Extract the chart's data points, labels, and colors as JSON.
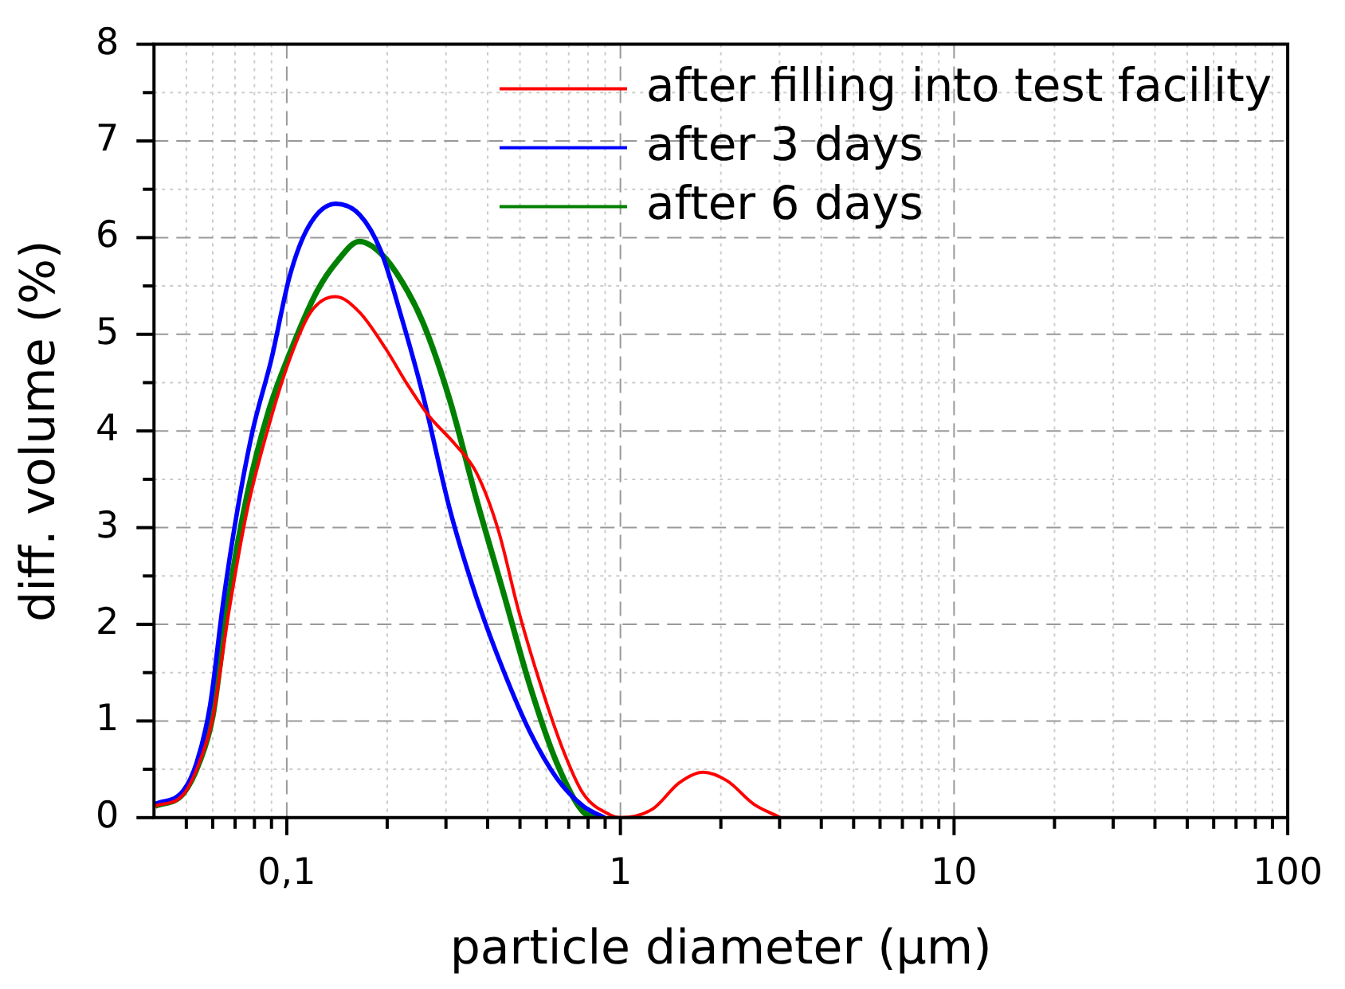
{
  "chart_data": {
    "type": "line",
    "xlabel": "particle diameter (µm)",
    "ylabel": "diff. volume (%)",
    "log": "x",
    "grid": true,
    "legend": "top right",
    "marker": "none",
    "line_style": "solid",
    "xlim": [
      0.04,
      100
    ],
    "ylim": [
      0,
      8
    ],
    "xticks": [
      {
        "value": 0.05,
        "label": null
      },
      {
        "value": 0.06,
        "label": null
      },
      {
        "value": 0.07,
        "label": null
      },
      {
        "value": 0.08,
        "label": null
      },
      {
        "value": 0.09,
        "label": null
      },
      {
        "value": 0.1,
        "label": "0,1"
      },
      {
        "value": 0.2,
        "label": null
      },
      {
        "value": 0.3,
        "label": null
      },
      {
        "value": 0.4,
        "label": null
      },
      {
        "value": 0.5,
        "label": null
      },
      {
        "value": 0.6,
        "label": null
      },
      {
        "value": 0.7,
        "label": null
      },
      {
        "value": 0.8,
        "label": null
      },
      {
        "value": 0.9,
        "label": null
      },
      1,
      {
        "value": 2,
        "label": null
      },
      {
        "value": 3,
        "label": null
      },
      {
        "value": 4,
        "label": null
      },
      {
        "value": 5,
        "label": null
      },
      {
        "value": 6,
        "label": null
      },
      {
        "value": 7,
        "label": null
      },
      {
        "value": 8,
        "label": null
      },
      {
        "value": 9,
        "label": null
      },
      10,
      {
        "value": 20,
        "label": null
      },
      {
        "value": 30,
        "label": null
      },
      {
        "value": 40,
        "label": null
      },
      {
        "value": 50,
        "label": null
      },
      {
        "value": 60,
        "label": null
      },
      {
        "value": 70,
        "label": null
      },
      {
        "value": 80,
        "label": null
      },
      {
        "value": 90,
        "label": null
      },
      100
    ],
    "yticks": [
      0,
      {
        "value": 0.5,
        "label": null
      },
      1,
      {
        "value": 1.5,
        "label": null
      },
      2,
      {
        "value": 2.5,
        "label": null
      },
      3,
      {
        "value": 3.5,
        "label": null
      },
      4,
      {
        "value": 4.5,
        "label": null
      },
      5,
      {
        "value": 5.5,
        "label": null
      },
      6,
      {
        "value": 6.5,
        "label": null
      },
      7,
      {
        "value": 7.5,
        "label": null
      },
      8
    ],
    "series": [
      {
        "name": "after filling into test facility",
        "color": "#ff0000",
        "x": [
          0.0403,
          0.049,
          0.0547,
          0.06,
          0.067,
          0.0762,
          0.0883,
          0.102,
          0.118,
          0.14,
          0.165,
          0.198,
          0.23,
          0.266,
          0.32,
          0.37,
          0.43,
          0.497,
          0.577,
          0.668,
          0.773,
          0.93,
          1.0,
          1.25,
          1.5,
          1.77,
          2.09,
          2.51,
          3.02
        ],
        "values": [
          0.12,
          0.24,
          0.57,
          1.03,
          2.12,
          3.19,
          4.05,
          4.74,
          5.23,
          5.39,
          5.23,
          4.85,
          4.48,
          4.16,
          3.86,
          3.57,
          2.98,
          2.12,
          1.37,
          0.73,
          0.25,
          0.03,
          0,
          0.09,
          0.36,
          0.47,
          0.38,
          0.14,
          0
        ]
      },
      {
        "name": "after 3 days",
        "color": "#0000ff",
        "x": [
          0.0403,
          0.049,
          0.0537,
          0.0589,
          0.0645,
          0.0708,
          0.079,
          0.0899,
          0.102,
          0.116,
          0.14,
          0.165,
          0.191,
          0.221,
          0.256,
          0.308,
          0.37,
          0.445,
          0.535,
          0.644,
          0.773,
          0.897
        ],
        "values": [
          0.14,
          0.28,
          0.57,
          1.16,
          2.23,
          3.14,
          4.0,
          4.74,
          5.6,
          6.11,
          6.35,
          6.24,
          5.87,
          5.17,
          4.37,
          3.19,
          2.28,
          1.53,
          0.89,
          0.41,
          0.12,
          0
        ]
      },
      {
        "name": "after 6 days",
        "color": "#008000",
        "x": [
          0.0403,
          0.049,
          0.0547,
          0.06,
          0.067,
          0.0762,
          0.0883,
          0.102,
          0.123,
          0.142,
          0.165,
          0.191,
          0.221,
          0.256,
          0.308,
          0.37,
          0.445,
          0.535,
          0.644,
          0.773,
          0.86
        ],
        "values": [
          0.12,
          0.25,
          0.57,
          1.05,
          2.28,
          3.35,
          4.21,
          4.8,
          5.44,
          5.76,
          5.96,
          5.84,
          5.55,
          5.12,
          4.32,
          3.3,
          2.34,
          1.37,
          0.57,
          0.06,
          0
        ]
      }
    ]
  }
}
